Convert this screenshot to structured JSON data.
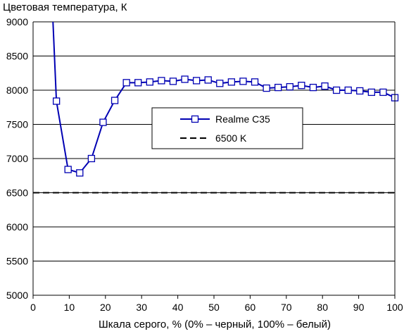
{
  "chart_data": {
    "type": "line",
    "title": "",
    "ylabel": "Цветовая температура, К",
    "xlabel": "Шкала серого, % (0% – черный, 100% – белый)",
    "xlim": [
      0,
      100
    ],
    "ylim": [
      5000,
      9000
    ],
    "xticks": [
      "0",
      "10",
      "20",
      "30",
      "40",
      "50",
      "60",
      "70",
      "80",
      "90",
      "100"
    ],
    "yticks": [
      "5000",
      "5500",
      "6000",
      "6500",
      "7000",
      "7500",
      "8000",
      "8500",
      "9000"
    ],
    "grid": "horizontal",
    "legend_position": "center",
    "series": [
      {
        "name": "Realme C35",
        "color": "#0000b3",
        "marker": "square",
        "x": [
          5.5,
          6.45,
          9.67,
          12.9,
          16.13,
          19.35,
          22.58,
          25.81,
          29.03,
          32.26,
          35.48,
          38.71,
          41.94,
          45.16,
          48.39,
          51.61,
          54.84,
          58.06,
          61.29,
          64.52,
          67.74,
          70.97,
          74.19,
          77.42,
          80.65,
          83.87,
          87.1,
          90.32,
          93.55,
          96.77,
          100
        ],
        "values": [
          9000,
          7840,
          6840,
          6790,
          7000,
          7530,
          7850,
          8110,
          8110,
          8120,
          8140,
          8130,
          8160,
          8140,
          8150,
          8100,
          8120,
          8130,
          8120,
          8030,
          8040,
          8050,
          8070,
          8040,
          8060,
          8000,
          8000,
          7990,
          7970,
          7970,
          7890
        ]
      },
      {
        "name": "6500 K",
        "color": "#000000",
        "dash": "dashed",
        "x": [
          0,
          100
        ],
        "values": [
          6500,
          6500
        ]
      }
    ]
  }
}
